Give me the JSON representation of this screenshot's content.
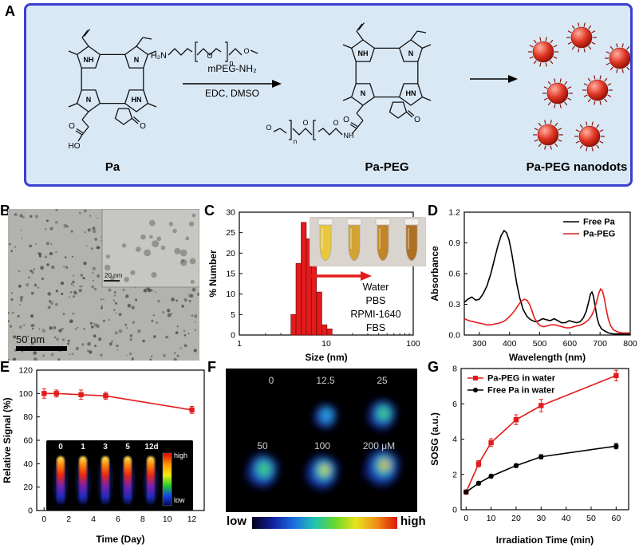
{
  "figure": {
    "panels": {
      "A": {
        "label": "A",
        "pa_label": "Pa",
        "papeg_label": "Pa-PEG",
        "nanodots_label": "Pa-PEG nanodots",
        "reagent_line1": "mPEG-NH₂",
        "reagent_line2": "EDC, DMSO",
        "amine_label": "H₂N",
        "n_subscript": "n",
        "atom_o": "O",
        "atom_ho": "HO",
        "atom_nh": "NH",
        "atom_n": "N",
        "atom_hn": "HN"
      },
      "B": {
        "label": "B",
        "scale_main": "50 nm",
        "scale_inset": "20 nm"
      },
      "C": {
        "label": "C",
        "media_labels": [
          "Water",
          "PBS",
          "RPMI-1640",
          "FBS"
        ]
      },
      "D": {
        "label": "D"
      },
      "E": {
        "label": "E",
        "inset_day_labels": [
          "0",
          "1",
          "3",
          "5",
          "12d"
        ],
        "colorbar_high": "high",
        "colorbar_low": "low"
      },
      "F": {
        "label": "F",
        "concentration_labels": [
          "0",
          "12.5",
          "25",
          "50",
          "100",
          "200 μM"
        ],
        "colorbar_low": "low",
        "colorbar_high": "high"
      },
      "G": {
        "label": "G"
      }
    }
  },
  "chart_data": [
    {
      "id": "size-hist",
      "type": "bar",
      "title": "",
      "xlabel": "Size (nm)",
      "ylabel": "% Number",
      "xscale": "log",
      "xlim": [
        1,
        100
      ],
      "ylim": [
        0,
        30
      ],
      "xticks": [
        1,
        10,
        100
      ],
      "yticks": [
        0,
        5,
        10,
        15,
        20,
        25,
        30
      ],
      "bar_color": "#e31b1c",
      "bar_edge": "#7a0a0a",
      "bars": {
        "centers": [
          4.2,
          4.8,
          5.5,
          6.3,
          7.2,
          8.3,
          9.5,
          10.9
        ],
        "values": [
          5,
          17.5,
          27.5,
          23.5,
          18,
          10.5,
          2.5,
          1.5
        ]
      }
    },
    {
      "id": "absorbance",
      "type": "line",
      "title": "",
      "xlabel": "Wavelength (nm)",
      "ylabel": "Absorbance",
      "xlim": [
        250,
        800
      ],
      "ylim": [
        0,
        1.2
      ],
      "xticks": [
        300,
        400,
        500,
        600,
        700,
        800
      ],
      "yticks": [
        0,
        0.3,
        0.6,
        0.9,
        1.2
      ],
      "legend": {
        "pos": "top-right"
      },
      "series": [
        {
          "name": "Free Pa",
          "color": "#000000",
          "x": [
            250,
            262,
            275,
            288,
            300,
            312,
            325,
            338,
            350,
            362,
            372,
            382,
            390,
            398,
            406,
            415,
            424,
            434,
            445,
            458,
            470,
            484,
            498,
            510,
            522,
            535,
            548,
            560,
            572,
            585,
            598,
            610,
            622,
            634,
            645,
            654,
            662,
            668,
            673,
            678,
            684,
            690,
            697,
            705,
            715,
            728,
            745,
            765,
            800
          ],
          "y": [
            0.32,
            0.35,
            0.37,
            0.34,
            0.35,
            0.4,
            0.48,
            0.6,
            0.74,
            0.88,
            0.97,
            1.02,
            1.0,
            0.93,
            0.82,
            0.66,
            0.5,
            0.36,
            0.25,
            0.18,
            0.15,
            0.13,
            0.14,
            0.16,
            0.15,
            0.14,
            0.16,
            0.14,
            0.12,
            0.12,
            0.14,
            0.13,
            0.12,
            0.13,
            0.17,
            0.23,
            0.32,
            0.4,
            0.42,
            0.38,
            0.28,
            0.17,
            0.1,
            0.06,
            0.04,
            0.02,
            0.01,
            0.01,
            0.01
          ]
        },
        {
          "name": "Pa-PEG",
          "color": "#e31b1c",
          "x": [
            250,
            265,
            280,
            295,
            310,
            325,
            340,
            355,
            370,
            385,
            400,
            412,
            424,
            436,
            448,
            458,
            466,
            474,
            482,
            492,
            502,
            514,
            526,
            538,
            550,
            562,
            575,
            588,
            600,
            612,
            625,
            638,
            650,
            662,
            672,
            681,
            689,
            696,
            702,
            708,
            714,
            720,
            727,
            735,
            745,
            758,
            775,
            800
          ],
          "y": [
            0.16,
            0.14,
            0.13,
            0.12,
            0.11,
            0.1,
            0.1,
            0.11,
            0.12,
            0.14,
            0.18,
            0.22,
            0.27,
            0.32,
            0.35,
            0.34,
            0.3,
            0.24,
            0.17,
            0.12,
            0.09,
            0.08,
            0.09,
            0.1,
            0.1,
            0.09,
            0.08,
            0.07,
            0.07,
            0.08,
            0.09,
            0.1,
            0.12,
            0.15,
            0.19,
            0.25,
            0.33,
            0.41,
            0.45,
            0.43,
            0.36,
            0.26,
            0.16,
            0.09,
            0.05,
            0.03,
            0.02,
            0.02
          ]
        }
      ]
    },
    {
      "id": "stability",
      "type": "line",
      "title": "",
      "xlabel": "Time (Day)",
      "ylabel": "Relative Signal (%)",
      "xlim": [
        -0.6,
        13
      ],
      "ylim": [
        0,
        120
      ],
      "xticks": [
        0,
        2,
        4,
        6,
        8,
        10,
        12
      ],
      "yticks": [
        0,
        20,
        40,
        60,
        80,
        100,
        120
      ],
      "series": [
        {
          "name": "Pa-PEG nanodots",
          "color": "#e31b1c",
          "marker": "square",
          "x": [
            0,
            1,
            3,
            5,
            12
          ],
          "y": [
            100,
            100,
            99,
            98,
            86
          ],
          "yerr": [
            4,
            3,
            4,
            3,
            3
          ]
        }
      ]
    },
    {
      "id": "sosg",
      "type": "line",
      "title": "",
      "xlabel": "Irradiation Time (min)",
      "ylabel": "SOSG (a.u.)",
      "xlim": [
        -2,
        65
      ],
      "ylim": [
        0,
        8
      ],
      "xticks": [
        0,
        10,
        20,
        30,
        40,
        50,
        60
      ],
      "yticks": [
        0,
        2,
        4,
        6,
        8
      ],
      "legend": {
        "pos": "top-left"
      },
      "series": [
        {
          "name": "Pa-PEG in water",
          "color": "#e31b1c",
          "marker": "square",
          "x": [
            0,
            5,
            10,
            20,
            30,
            60
          ],
          "y": [
            1.0,
            2.6,
            3.8,
            5.1,
            5.9,
            7.6
          ],
          "yerr": [
            0.12,
            0.18,
            0.22,
            0.28,
            0.35,
            0.3
          ]
        },
        {
          "name": "Free Pa in water",
          "color": "#000000",
          "marker": "circle",
          "x": [
            0,
            5,
            10,
            20,
            30,
            60
          ],
          "y": [
            1.0,
            1.5,
            1.9,
            2.5,
            3.0,
            3.6
          ],
          "yerr": [
            0.08,
            0.08,
            0.1,
            0.1,
            0.12,
            0.15
          ]
        }
      ]
    }
  ]
}
